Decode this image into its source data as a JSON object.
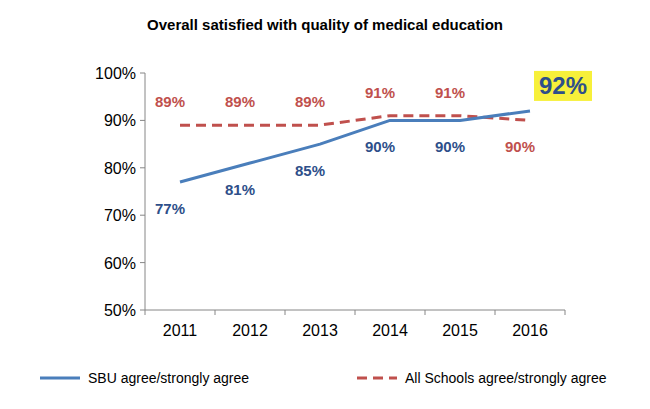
{
  "chart_data": {
    "type": "line",
    "title": "Overall satisfied with quality of medical education",
    "categories": [
      "2011",
      "2012",
      "2013",
      "2014",
      "2015",
      "2016"
    ],
    "series": [
      {
        "name": "SBU agree/strongly agree",
        "color": "#4a7ebb",
        "line_style": "solid",
        "values": [
          77,
          81,
          85,
          90,
          90,
          92
        ],
        "value_labels": [
          "77%",
          "81%",
          "85%",
          "90%",
          "90%",
          "92%"
        ]
      },
      {
        "name": "All Schools agree/strongly agree",
        "color": "#c0504d",
        "line_style": "dashed",
        "values": [
          89,
          89,
          89,
          91,
          91,
          90
        ],
        "value_labels": [
          "89%",
          "89%",
          "89%",
          "91%",
          "91%",
          "90%"
        ]
      }
    ],
    "ylim": [
      50,
      100
    ],
    "yticks": [
      {
        "value": 50,
        "label": "50%"
      },
      {
        "value": 60,
        "label": "60%"
      },
      {
        "value": 70,
        "label": "70%"
      },
      {
        "value": 80,
        "label": "80%"
      },
      {
        "value": 90,
        "label": "90%"
      },
      {
        "value": 100,
        "label": "100%"
      }
    ],
    "grid": false,
    "legend": "bottom",
    "data_labels": true
  }
}
